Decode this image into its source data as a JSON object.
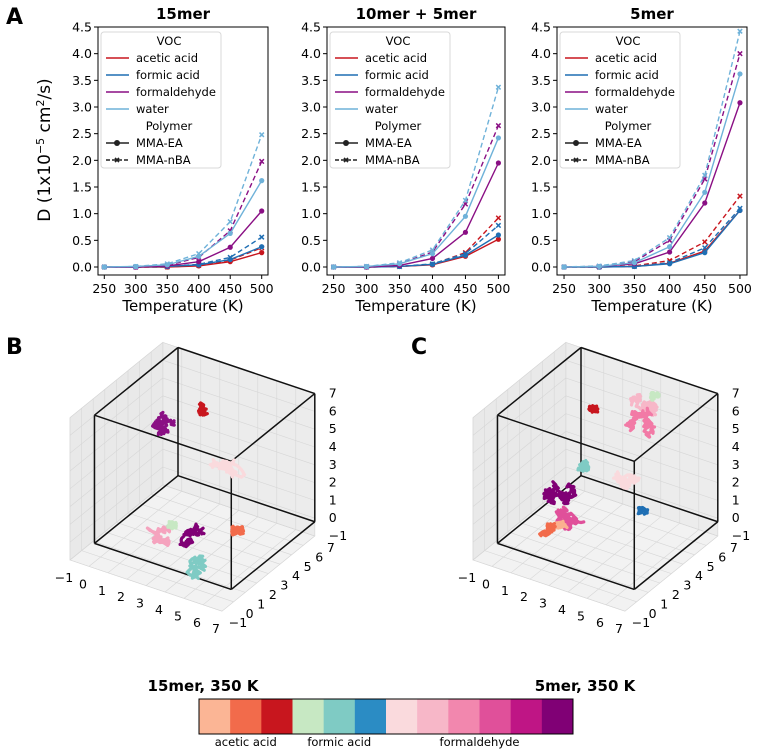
{
  "panels": {
    "a_letter": "A",
    "b_letter": "B",
    "c_letter": "C"
  },
  "ylabel_text": "D (1x10",
  "ylabel_exp": "−5",
  "ylabel_unit": " cm",
  "ylabel_sq": "2",
  "ylabel_end": "/s)",
  "legend": {
    "voc_title": "VOC",
    "polymer_title": "Polymer",
    "voc_items": [
      "acetic acid",
      "formic acid",
      "formaldehyde",
      "water"
    ],
    "polymer_items": [
      "MMA-EA",
      "MMA-nBA"
    ]
  },
  "colors": {
    "acetic": "#c8161e",
    "formic": "#1f6fb4",
    "formaldehyde": "#8a0f84",
    "water": "#6fb2d9",
    "axis": "#000000"
  },
  "chart_data": [
    {
      "type": "line",
      "title": "15mer",
      "xlabel": "Temperature (K)",
      "ylabel": "D (1x10^-5 cm^2/s)",
      "x": [
        250,
        300,
        350,
        400,
        450,
        500
      ],
      "xlim": [
        240,
        510
      ],
      "ylim": [
        -0.15,
        4.5
      ],
      "yticks": [
        0.0,
        0.5,
        1.0,
        1.5,
        2.0,
        2.5,
        3.0,
        3.5,
        4.0,
        4.5
      ],
      "yticklabels": [
        "0.0",
        "0.5",
        "1.0",
        "1.5",
        "2.0",
        "2.5",
        "3.0",
        "3.5",
        "4.0",
        "4.5"
      ],
      "xticks": [
        250,
        300,
        350,
        400,
        450,
        500
      ],
      "series": [
        {
          "name": "acetic acid MMA-EA",
          "voc": "acetic",
          "polymer": "MMA-EA",
          "values": [
            0.0,
            0.0,
            0.0,
            0.02,
            0.1,
            0.27
          ]
        },
        {
          "name": "acetic acid MMA-nBA",
          "voc": "acetic",
          "polymer": "MMA-nBA",
          "values": [
            0.0,
            0.0,
            0.0,
            0.03,
            0.13,
            0.36
          ]
        },
        {
          "name": "formic acid MMA-EA",
          "voc": "formic",
          "polymer": "MMA-EA",
          "values": [
            0.0,
            0.0,
            0.01,
            0.04,
            0.14,
            0.38
          ]
        },
        {
          "name": "formic acid MMA-nBA",
          "voc": "formic",
          "polymer": "MMA-nBA",
          "values": [
            0.0,
            0.0,
            0.01,
            0.05,
            0.18,
            0.56
          ]
        },
        {
          "name": "formaldehyde MMA-EA",
          "voc": "formaldehyde",
          "polymer": "MMA-EA",
          "values": [
            0.0,
            0.0,
            0.02,
            0.1,
            0.37,
            1.05
          ]
        },
        {
          "name": "formaldehyde MMA-nBA",
          "voc": "formaldehyde",
          "polymer": "MMA-nBA",
          "values": [
            0.0,
            0.0,
            0.03,
            0.18,
            0.68,
            1.98
          ]
        },
        {
          "name": "water MMA-EA",
          "voc": "water",
          "polymer": "MMA-EA",
          "values": [
            0.0,
            0.01,
            0.04,
            0.2,
            0.63,
            1.62
          ]
        },
        {
          "name": "water MMA-nBA",
          "voc": "water",
          "polymer": "MMA-nBA",
          "values": [
            0.0,
            0.01,
            0.06,
            0.25,
            0.85,
            2.48
          ]
        }
      ]
    },
    {
      "type": "line",
      "title": "10mer + 5mer",
      "xlabel": "Temperature (K)",
      "ylabel": "",
      "x": [
        250,
        300,
        350,
        400,
        450,
        500
      ],
      "xlim": [
        240,
        510
      ],
      "ylim": [
        -0.15,
        4.5
      ],
      "yticks": [
        0.0,
        0.5,
        1.0,
        1.5,
        2.0,
        2.5,
        3.0,
        3.5,
        4.0,
        4.5
      ],
      "yticklabels": [
        "0.0",
        "0.5",
        "1.0",
        "1.5",
        "2.0",
        "2.5",
        "3.0",
        "3.5",
        "4.0",
        "4.5"
      ],
      "xticks": [
        250,
        300,
        350,
        400,
        450,
        500
      ],
      "series": [
        {
          "name": "acetic acid MMA-EA",
          "voc": "acetic",
          "polymer": "MMA-EA",
          "values": [
            0.0,
            0.0,
            0.01,
            0.04,
            0.2,
            0.52
          ]
        },
        {
          "name": "acetic acid MMA-nBA",
          "voc": "acetic",
          "polymer": "MMA-nBA",
          "values": [
            0.0,
            0.0,
            0.01,
            0.05,
            0.27,
            0.92
          ]
        },
        {
          "name": "formic acid MMA-EA",
          "voc": "formic",
          "polymer": "MMA-EA",
          "values": [
            0.0,
            0.0,
            0.01,
            0.05,
            0.22,
            0.6
          ]
        },
        {
          "name": "formic acid MMA-nBA",
          "voc": "formic",
          "polymer": "MMA-nBA",
          "values": [
            0.0,
            0.0,
            0.01,
            0.06,
            0.25,
            0.78
          ]
        },
        {
          "name": "formaldehyde MMA-EA",
          "voc": "formaldehyde",
          "polymer": "MMA-EA",
          "values": [
            0.0,
            0.0,
            0.03,
            0.16,
            0.65,
            1.95
          ]
        },
        {
          "name": "formaldehyde MMA-nBA",
          "voc": "formaldehyde",
          "polymer": "MMA-nBA",
          "values": [
            0.0,
            0.01,
            0.06,
            0.28,
            1.18,
            2.65
          ]
        },
        {
          "name": "water MMA-EA",
          "voc": "water",
          "polymer": "MMA-EA",
          "values": [
            0.0,
            0.01,
            0.06,
            0.25,
            0.95,
            2.42
          ]
        },
        {
          "name": "water MMA-nBA",
          "voc": "water",
          "polymer": "MMA-nBA",
          "values": [
            0.0,
            0.01,
            0.08,
            0.32,
            1.25,
            3.37
          ]
        }
      ]
    },
    {
      "type": "line",
      "title": "5mer",
      "xlabel": "Temperature (K)",
      "ylabel": "",
      "x": [
        250,
        300,
        350,
        400,
        450,
        500
      ],
      "xlim": [
        240,
        510
      ],
      "ylim": [
        -0.15,
        4.5
      ],
      "yticks": [
        0.0,
        0.5,
        1.0,
        1.5,
        2.0,
        2.5,
        3.0,
        3.5,
        4.0,
        4.5
      ],
      "yticklabels": [
        "0.0",
        "0.5",
        "1.0",
        "1.5",
        "2.0",
        "2.5",
        "3.0",
        "3.5",
        "4.0",
        "4.5"
      ],
      "xticks": [
        250,
        300,
        350,
        400,
        450,
        500
      ],
      "series": [
        {
          "name": "acetic acid MMA-EA",
          "voc": "acetic",
          "polymer": "MMA-EA",
          "values": [
            0.0,
            0.0,
            0.01,
            0.07,
            0.3,
            1.06
          ]
        },
        {
          "name": "acetic acid MMA-nBA",
          "voc": "acetic",
          "polymer": "MMA-nBA",
          "values": [
            0.0,
            0.0,
            0.02,
            0.12,
            0.47,
            1.33
          ]
        },
        {
          "name": "formic acid MMA-EA",
          "voc": "formic",
          "polymer": "MMA-EA",
          "values": [
            0.0,
            0.0,
            0.01,
            0.06,
            0.27,
            1.06
          ]
        },
        {
          "name": "formic acid MMA-nBA",
          "voc": "formic",
          "polymer": "MMA-nBA",
          "values": [
            0.0,
            0.0,
            0.01,
            0.08,
            0.36,
            1.1
          ]
        },
        {
          "name": "formaldehyde MMA-EA",
          "voc": "formaldehyde",
          "polymer": "MMA-EA",
          "values": [
            0.0,
            0.01,
            0.06,
            0.28,
            1.2,
            3.08
          ]
        },
        {
          "name": "formaldehyde MMA-nBA",
          "voc": "formaldehyde",
          "polymer": "MMA-nBA",
          "values": [
            0.0,
            0.01,
            0.1,
            0.5,
            1.65,
            4.0
          ]
        },
        {
          "name": "water MMA-EA",
          "voc": "water",
          "polymer": "MMA-EA",
          "values": [
            0.0,
            0.01,
            0.08,
            0.38,
            1.4,
            3.62
          ]
        },
        {
          "name": "water MMA-nBA",
          "voc": "water",
          "polymer": "MMA-nBA",
          "values": [
            0.0,
            0.02,
            0.12,
            0.55,
            1.72,
            4.42
          ]
        }
      ]
    }
  ],
  "trajectories": {
    "b_caption": "15mer, 350 K",
    "c_caption": "5mer, 350 K",
    "axis_ticks": [
      "−1",
      "0",
      "1",
      "2",
      "3",
      "4",
      "5",
      "6",
      "7"
    ],
    "b_blobs": [
      {
        "name": "formaldehyde-dark",
        "color": "#8a0f84",
        "x": 0.8,
        "y": 4.8,
        "z": 4.3,
        "size": 1.2
      },
      {
        "name": "acetic-dark",
        "color": "#c8161e",
        "x": 2.2,
        "y": 5.5,
        "z": 5.2,
        "size": 0.5
      },
      {
        "name": "formaldehyde-lightest",
        "color": "#fadadd",
        "x": 4.5,
        "y": 4.0,
        "z": 3.0,
        "size": 1.4
      },
      {
        "name": "acetic-mid",
        "color": "#f26b4b",
        "x": 5.5,
        "y": 2.8,
        "z": 1.0,
        "size": 0.4
      },
      {
        "name": "formaldehyde-darkest",
        "color": "#800075",
        "x": 3.5,
        "y": 2.0,
        "z": 0.5,
        "size": 1.0
      },
      {
        "name": "formic-mid",
        "color": "#7fcbc4",
        "x": 4.2,
        "y": 1.0,
        "z": -0.6,
        "size": 0.9
      },
      {
        "name": "formaldehyde-light",
        "color": "#f5a3be",
        "x": 1.8,
        "y": 2.0,
        "z": -0.2,
        "size": 0.8
      },
      {
        "name": "formic-light",
        "color": "#c7e8c3",
        "x": 2.2,
        "y": 2.6,
        "z": 0.2,
        "size": 0.3
      }
    ],
    "c_blobs": [
      {
        "name": "formaldehyde-light",
        "color": "#f7b7c8",
        "x": 3.2,
        "y": 5.8,
        "z": 6.0,
        "size": 1.6
      },
      {
        "name": "formic-light",
        "color": "#c7e8c3",
        "x": 4.3,
        "y": 6.0,
        "z": 6.4,
        "size": 0.3
      },
      {
        "name": "formaldehyde-mid",
        "color": "#f27aa6",
        "x": 4.4,
        "y": 5.2,
        "z": 5.2,
        "size": 1.4
      },
      {
        "name": "acetic-dark",
        "color": "#c8161e",
        "x": 1.3,
        "y": 5.6,
        "z": 4.8,
        "size": 0.3
      },
      {
        "name": "formaldehyde-lightest",
        "color": "#fadadd",
        "x": 4.8,
        "y": 3.6,
        "z": 3.2,
        "size": 1.5
      },
      {
        "name": "formic-dark",
        "color": "#1f6fb4",
        "x": 5.5,
        "y": 3.0,
        "z": 2.0,
        "size": 0.3
      },
      {
        "name": "formic-mid",
        "color": "#7fcbc4",
        "x": 1.5,
        "y": 4.2,
        "z": 2.5,
        "size": 0.5
      },
      {
        "name": "formaldehyde-darkest",
        "color": "#800075",
        "x": 0.5,
        "y": 3.5,
        "z": 1.5,
        "size": 1.8
      },
      {
        "name": "formaldehyde-pink",
        "color": "#e0509a",
        "x": 2.8,
        "y": 2.2,
        "z": 0.8,
        "size": 1.8
      },
      {
        "name": "acetic-light",
        "color": "#fbb08f",
        "x": 1.8,
        "y": 2.0,
        "z": 0.5,
        "size": 0.4
      },
      {
        "name": "acetic-mid",
        "color": "#f26b4b",
        "x": 1.2,
        "y": 1.8,
        "z": 0.0,
        "size": 0.5
      }
    ]
  },
  "colorbar": {
    "colors": [
      "#fbb595",
      "#f26b4b",
      "#c8161e",
      "#c7e8c3",
      "#7fcbc4",
      "#2b8cc4",
      "#fadadd",
      "#f7b7c8",
      "#f287ae",
      "#e0509a",
      "#bf1585",
      "#800075"
    ],
    "labels": [
      "acetic acid",
      "formic acid",
      "formaldehyde"
    ]
  }
}
